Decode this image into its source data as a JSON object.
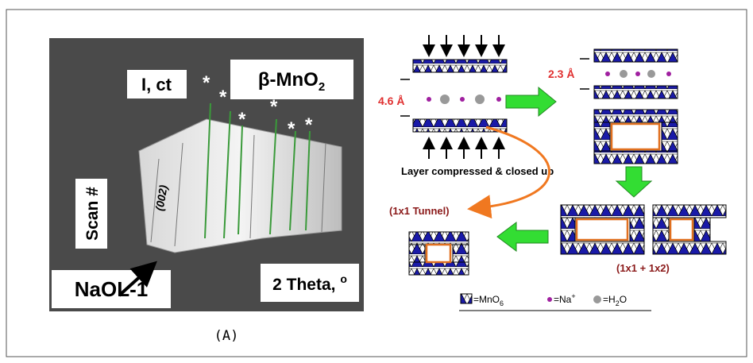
{
  "left_panel": {
    "intensity_label": "I, ct",
    "phase_label": {
      "text": "β-MnO",
      "subscript": "2"
    },
    "scan_label": "Scan #",
    "peak_label": "(002)",
    "sample_label": "NaOL-1",
    "x_label": {
      "text": "2 Theta, ",
      "superscript": "o"
    },
    "peak_marker": "*"
  },
  "right_panel": {
    "spacing_initial": "4.6 Å",
    "spacing_final": "2.3 Å",
    "process_label": "Layer compressed & closed up",
    "tunnel_label": "(1x1 Tunnel)",
    "mixed_label": "(1x1 + 1x2)",
    "legend": [
      {
        "text": "=MnO",
        "subscript": "6"
      },
      {
        "text": "=Na",
        "superscript": "+"
      },
      {
        "text": "=H",
        "subscript": "2",
        "suffix": "O"
      }
    ]
  },
  "caption": "(A)"
}
